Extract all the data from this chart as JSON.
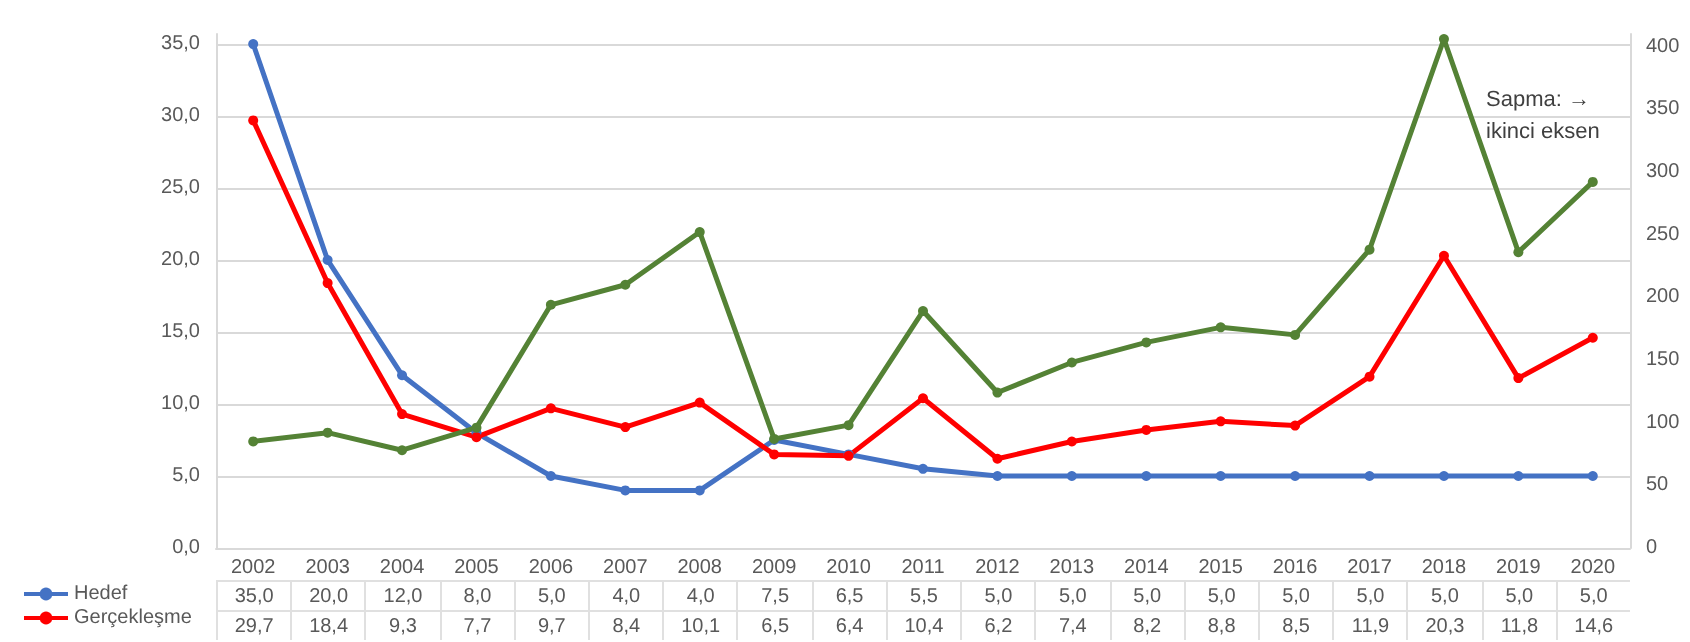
{
  "chart_data": {
    "type": "line",
    "categories": [
      "2002",
      "2003",
      "2004",
      "2005",
      "2006",
      "2007",
      "2008",
      "2009",
      "2010",
      "2011",
      "2012",
      "2013",
      "2014",
      "2015",
      "2016",
      "2017",
      "2018",
      "2019",
      "2020"
    ],
    "series": [
      {
        "name": "Hedef",
        "color": "#4472c4",
        "values": [
          35.0,
          20.0,
          12.0,
          8.0,
          5.0,
          4.0,
          4.0,
          7.5,
          6.5,
          5.5,
          5.0,
          5.0,
          5.0,
          5.0,
          5.0,
          5.0,
          5.0,
          5.0,
          5.0
        ],
        "value_labels": [
          "35,0",
          "20,0",
          "12,0",
          "8,0",
          "5,0",
          "4,0",
          "4,0",
          "7,5",
          "6,5",
          "5,5",
          "5,0",
          "5,0",
          "5,0",
          "5,0",
          "5,0",
          "5,0",
          "5,0",
          "5,0",
          "5,0"
        ]
      },
      {
        "name": "Gerçekleşme",
        "color": "#ff0000",
        "values": [
          29.7,
          18.4,
          9.3,
          7.7,
          9.7,
          8.4,
          10.1,
          6.5,
          6.4,
          10.4,
          6.2,
          7.4,
          8.2,
          8.8,
          8.5,
          11.9,
          20.3,
          11.8,
          14.6
        ],
        "value_labels": [
          "29,7",
          "18,4",
          "9,3",
          "7,7",
          "9,7",
          "8,4",
          "10,1",
          "6,5",
          "6,4",
          "10,4",
          "6,2",
          "7,4",
          "8,2",
          "8,8",
          "8,5",
          "11,9",
          "20,3",
          "11,8",
          "14,6"
        ]
      },
      {
        "color": "#548235",
        "axis": "y2",
        "values": [
          85,
          92,
          78,
          96,
          194,
          210,
          252,
          87,
          98,
          189,
          124,
          148,
          164,
          176,
          170,
          238,
          406,
          236,
          292
        ]
      }
    ],
    "ylim": [
      0,
      35.7
    ],
    "yticks": [
      {
        "value": 0,
        "label": "0,0"
      },
      {
        "value": 5,
        "label": "5,0"
      },
      {
        "value": 10,
        "label": "10,0"
      },
      {
        "value": 15,
        "label": "15,0"
      },
      {
        "value": 20,
        "label": "20,0"
      },
      {
        "value": 25,
        "label": "25,0"
      },
      {
        "value": 30,
        "label": "30,0"
      },
      {
        "value": 35,
        "label": "35,0"
      }
    ],
    "y2lim": [
      0,
      410
    ],
    "y2ticks": [
      0,
      50,
      100,
      150,
      200,
      250,
      300,
      350,
      400
    ],
    "annotations": [
      "Sapma: → ikinci eksen"
    ],
    "grid": "y",
    "legend": "bottom left",
    "marker": "circle",
    "line_style": "solid"
  }
}
